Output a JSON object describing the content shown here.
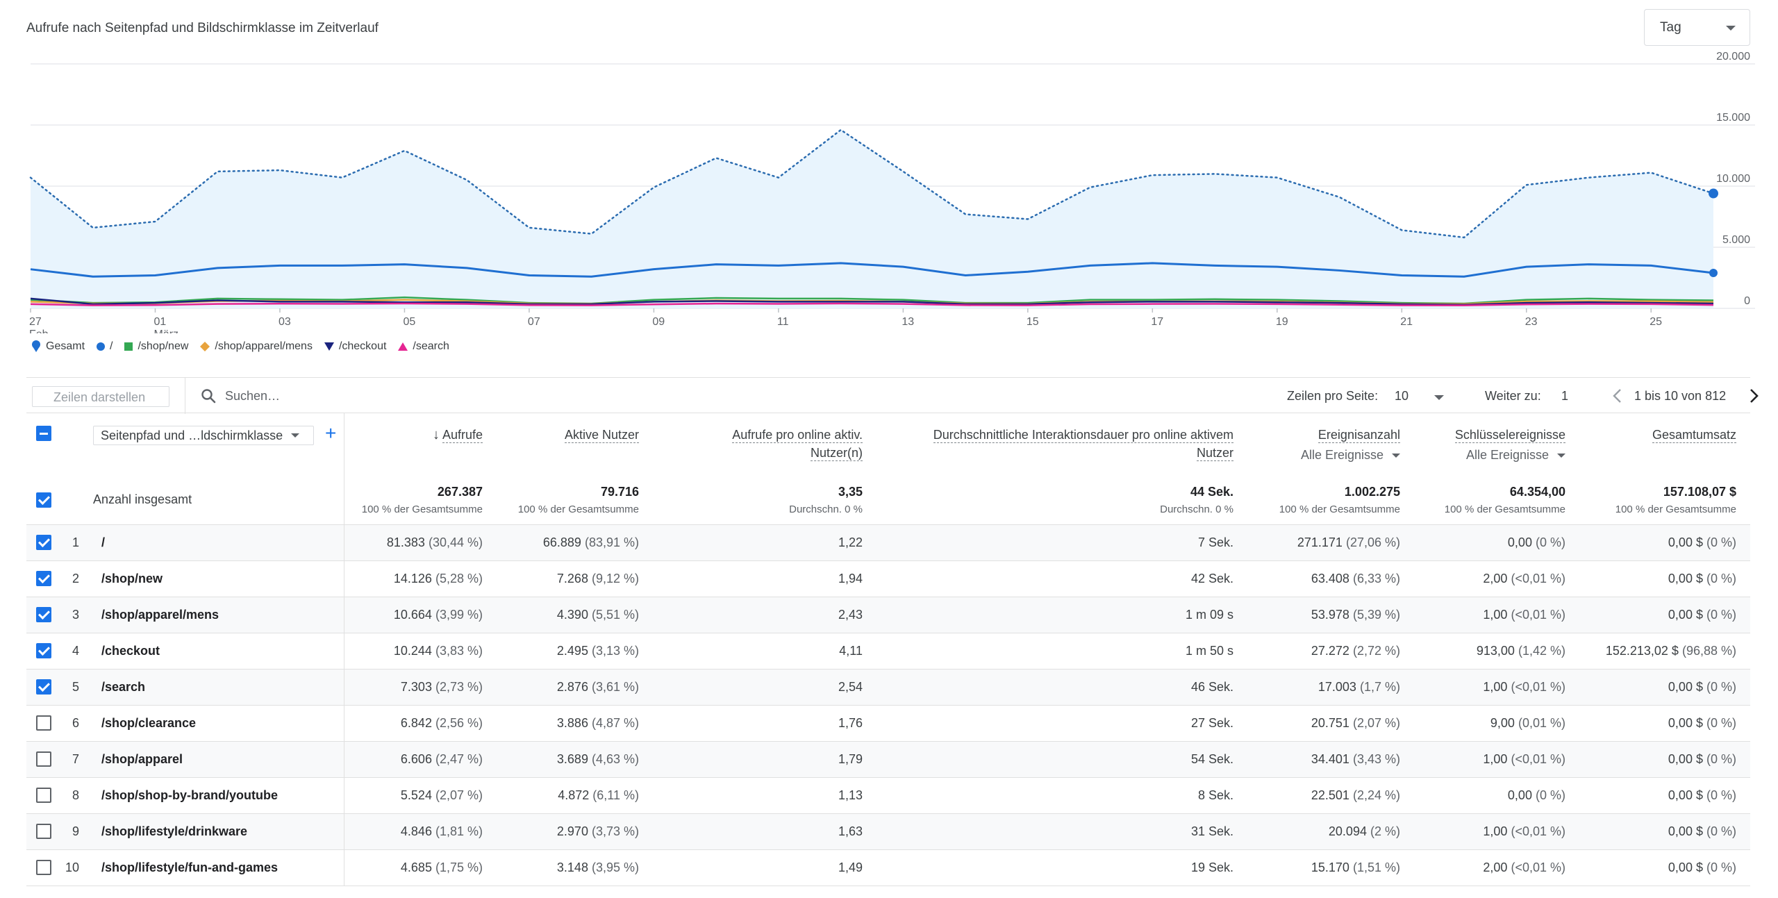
{
  "chart_title": "Aufrufe nach Seitenpfad und Bildschirmklasse im Zeitverlauf",
  "granularity": {
    "selected": "Tag"
  },
  "chart_data": {
    "type": "line",
    "x_tick_labels": [
      "27",
      "01",
      "03",
      "05",
      "07",
      "09",
      "11",
      "13",
      "15",
      "17",
      "19",
      "21",
      "23",
      "25"
    ],
    "x_tick_sublabels": {
      "27": "Feb.",
      "01": "März"
    },
    "x": [
      27,
      28,
      1,
      2,
      3,
      4,
      5,
      6,
      7,
      8,
      9,
      10,
      11,
      12,
      13,
      14,
      15,
      16,
      17,
      18,
      19,
      20,
      21,
      22,
      23,
      24,
      25,
      26
    ],
    "y_tick_labels": [
      "0",
      "5.000",
      "10.000",
      "15.000",
      "20.000"
    ],
    "ylim": [
      0,
      20000
    ],
    "grid": true,
    "series": [
      {
        "name": "Gesamt",
        "color": "#4285f4",
        "style": "dotted-area",
        "values": [
          10700,
          6600,
          7100,
          11200,
          11300,
          10700,
          12900,
          10500,
          6600,
          6100,
          9900,
          12300,
          10700,
          14600,
          11200,
          7700,
          7300,
          9900,
          10900,
          11000,
          10700,
          9100,
          6400,
          5800,
          10100,
          10700,
          11100,
          9400
        ]
      },
      {
        "name": "/",
        "color": "#1f6fd1",
        "values": [
          3200,
          2600,
          2700,
          3300,
          3500,
          3500,
          3600,
          3300,
          2700,
          2600,
          3200,
          3600,
          3500,
          3700,
          3400,
          2700,
          3000,
          3500,
          3700,
          3500,
          3400,
          3100,
          2700,
          2600,
          3400,
          3600,
          3500,
          2900
        ]
      },
      {
        "name": "/shop/new",
        "color": "#34a853",
        "values": [
          700,
          450,
          500,
          800,
          750,
          700,
          900,
          700,
          450,
          400,
          700,
          850,
          800,
          800,
          700,
          450,
          450,
          700,
          700,
          750,
          700,
          600,
          450,
          400,
          700,
          800,
          700,
          650
        ]
      },
      {
        "name": "/shop/apparel/mens",
        "color": "#e8a33d",
        "values": [
          550,
          400,
          420,
          600,
          620,
          580,
          700,
          580,
          400,
          380,
          550,
          650,
          600,
          620,
          550,
          400,
          380,
          550,
          560,
          580,
          560,
          480,
          380,
          360,
          560,
          600,
          580,
          520
        ]
      },
      {
        "name": "/checkout",
        "color": "#1a237e",
        "values": [
          800,
          350,
          450,
          650,
          550,
          550,
          500,
          500,
          350,
          350,
          550,
          600,
          550,
          550,
          550,
          350,
          350,
          500,
          550,
          550,
          500,
          450,
          350,
          300,
          450,
          500,
          450,
          400
        ]
      },
      {
        "name": "/search",
        "color": "#e52592",
        "values": [
          350,
          250,
          270,
          360,
          380,
          370,
          400,
          360,
          260,
          250,
          330,
          390,
          370,
          400,
          360,
          260,
          250,
          340,
          360,
          370,
          350,
          300,
          250,
          240,
          330,
          360,
          350,
          280
        ]
      }
    ]
  },
  "toolbar": {
    "rows_button": "Zeilen darstellen",
    "search_placeholder": "Suchen…",
    "per_page_label": "Zeilen pro Seite:",
    "per_page_value": "10",
    "goto_label": "Weiter zu:",
    "goto_value": "1",
    "range_text": "1 bis 10 von 812"
  },
  "table": {
    "dimension": "Seitenpfad und …ldschirmklasse",
    "headers": {
      "views": "Aufrufe",
      "active_users": "Aktive Nutzer",
      "views_per_user_1": "Aufrufe pro online aktiv.",
      "views_per_user_2": "Nutzer(n)",
      "avg_engagement_1": "Durchschnittliche Interaktionsdauer pro online aktivem",
      "avg_engagement_2": "Nutzer",
      "event_count": "Ereignisanzahl",
      "event_count_sub": "Alle Ereignisse",
      "key_events": "Schlüsselereignisse",
      "key_events_sub": "Alle Ereignisse",
      "revenue": "Gesamtumsatz"
    },
    "totals": {
      "label": "Anzahl insgesamt",
      "views": "267.387",
      "views_sub": "100 % der Gesamtsumme",
      "users": "79.716",
      "users_sub": "100 % der Gesamtsumme",
      "vpu": "3,35",
      "vpu_sub": "Durchschn. 0 %",
      "eng": "44 Sek.",
      "eng_sub": "Durchschn. 0 %",
      "events": "1.002.275",
      "events_sub": "100 % der Gesamtsumme",
      "key": "64.354,00",
      "key_sub": "100 % der Gesamtsumme",
      "rev": "157.108,07 $",
      "rev_sub": "100 % der Gesamtsumme"
    },
    "rows": [
      {
        "idx": "1",
        "path": "/",
        "checked": true,
        "views": "81.383",
        "views_pct": "(30,44 %)",
        "users": "66.889",
        "users_pct": "(83,91 %)",
        "vpu": "1,22",
        "eng": "7 Sek.",
        "events": "271.171",
        "events_pct": "(27,06 %)",
        "key": "0,00",
        "key_pct": "(0 %)",
        "rev": "0,00 $",
        "rev_pct": "(0 %)"
      },
      {
        "idx": "2",
        "path": "/shop/new",
        "checked": true,
        "views": "14.126",
        "views_pct": "(5,28 %)",
        "users": "7.268",
        "users_pct": "(9,12 %)",
        "vpu": "1,94",
        "eng": "42 Sek.",
        "events": "63.408",
        "events_pct": "(6,33 %)",
        "key": "2,00",
        "key_pct": "(<0,01 %)",
        "rev": "0,00 $",
        "rev_pct": "(0 %)"
      },
      {
        "idx": "3",
        "path": "/shop/apparel/mens",
        "checked": true,
        "views": "10.664",
        "views_pct": "(3,99 %)",
        "users": "4.390",
        "users_pct": "(5,51 %)",
        "vpu": "2,43",
        "eng": "1 m 09 s",
        "events": "53.978",
        "events_pct": "(5,39 %)",
        "key": "1,00",
        "key_pct": "(<0,01 %)",
        "rev": "0,00 $",
        "rev_pct": "(0 %)"
      },
      {
        "idx": "4",
        "path": "/checkout",
        "checked": true,
        "views": "10.244",
        "views_pct": "(3,83 %)",
        "users": "2.495",
        "users_pct": "(3,13 %)",
        "vpu": "4,11",
        "eng": "1 m 50 s",
        "events": "27.272",
        "events_pct": "(2,72 %)",
        "key": "913,00",
        "key_pct": "(1,42 %)",
        "rev": "152.213,02 $",
        "rev_pct": "(96,88 %)"
      },
      {
        "idx": "5",
        "path": "/search",
        "checked": true,
        "views": "7.303",
        "views_pct": "(2,73 %)",
        "users": "2.876",
        "users_pct": "(3,61 %)",
        "vpu": "2,54",
        "eng": "46 Sek.",
        "events": "17.003",
        "events_pct": "(1,7 %)",
        "key": "1,00",
        "key_pct": "(<0,01 %)",
        "rev": "0,00 $",
        "rev_pct": "(0 %)"
      },
      {
        "idx": "6",
        "path": "/shop/clearance",
        "checked": false,
        "views": "6.842",
        "views_pct": "(2,56 %)",
        "users": "3.886",
        "users_pct": "(4,87 %)",
        "vpu": "1,76",
        "eng": "27 Sek.",
        "events": "20.751",
        "events_pct": "(2,07 %)",
        "key": "9,00",
        "key_pct": "(0,01 %)",
        "rev": "0,00 $",
        "rev_pct": "(0 %)"
      },
      {
        "idx": "7",
        "path": "/shop/apparel",
        "checked": false,
        "views": "6.606",
        "views_pct": "(2,47 %)",
        "users": "3.689",
        "users_pct": "(4,63 %)",
        "vpu": "1,79",
        "eng": "54 Sek.",
        "events": "34.401",
        "events_pct": "(3,43 %)",
        "key": "1,00",
        "key_pct": "(<0,01 %)",
        "rev": "0,00 $",
        "rev_pct": "(0 %)"
      },
      {
        "idx": "8",
        "path": "/shop/shop-by-brand/youtube",
        "checked": false,
        "views": "5.524",
        "views_pct": "(2,07 %)",
        "users": "4.872",
        "users_pct": "(6,11 %)",
        "vpu": "1,13",
        "eng": "8 Sek.",
        "events": "22.501",
        "events_pct": "(2,24 %)",
        "key": "0,00",
        "key_pct": "(0 %)",
        "rev": "0,00 $",
        "rev_pct": "(0 %)"
      },
      {
        "idx": "9",
        "path": "/shop/lifestyle/drinkware",
        "checked": false,
        "views": "4.846",
        "views_pct": "(1,81 %)",
        "users": "2.970",
        "users_pct": "(3,73 %)",
        "vpu": "1,63",
        "eng": "31 Sek.",
        "events": "20.094",
        "events_pct": "(2 %)",
        "key": "1,00",
        "key_pct": "(<0,01 %)",
        "rev": "0,00 $",
        "rev_pct": "(0 %)"
      },
      {
        "idx": "10",
        "path": "/shop/lifestyle/fun-and-games",
        "checked": false,
        "views": "4.685",
        "views_pct": "(1,75 %)",
        "users": "3.148",
        "users_pct": "(3,95 %)",
        "vpu": "1,49",
        "eng": "19 Sek.",
        "events": "15.170",
        "events_pct": "(1,51 %)",
        "key": "2,00",
        "key_pct": "(<0,01 %)",
        "rev": "0,00 $",
        "rev_pct": "(0 %)"
      }
    ]
  }
}
